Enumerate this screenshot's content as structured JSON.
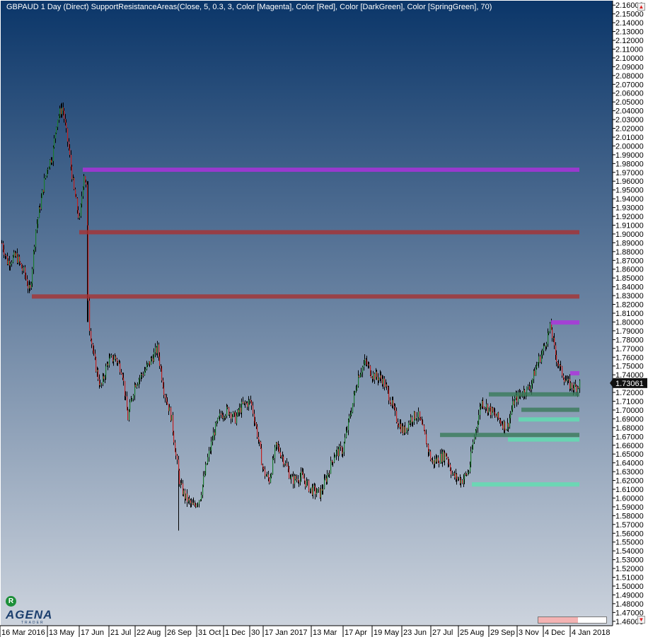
{
  "header": {
    "title": "GBPAUD 1 Day (Direct)    SupportResistanceAreas(Close, 5, 0.3, 3, Color [Magenta], Color [Red], Color [DarkGreen], Color [SpringGreen], 70)"
  },
  "logo": {
    "mark": "R",
    "name": "AGENA",
    "sub": "TRADER"
  },
  "price_badge": "1.73061",
  "colors": {
    "bg_top": "#0b3669",
    "bg_bottom": "#ccd3dd",
    "candle_up": "#1a7a2e",
    "candle_down": "#c02020",
    "wick": "#000000",
    "magenta": "#b030e0",
    "red": "#a83232",
    "darkgreen": "#3a7a5a",
    "springgreen": "#5fe0b0"
  },
  "chart_data": {
    "type": "candlestick",
    "title": "",
    "xlabel": "",
    "ylabel": "",
    "ylim": [
      1.455,
      2.165
    ],
    "y_ticks": [
      "2.16000",
      "2.15000",
      "2.14000",
      "2.13000",
      "2.12000",
      "2.11000",
      "2.10000",
      "2.09000",
      "2.08000",
      "2.07000",
      "2.06000",
      "2.05000",
      "2.04000",
      "2.03000",
      "2.02000",
      "2.01000",
      "2.00000",
      "1.99000",
      "1.98000",
      "1.97000",
      "1.96000",
      "1.95000",
      "1.94000",
      "1.93000",
      "1.92000",
      "1.91000",
      "1.90000",
      "1.89000",
      "1.88000",
      "1.87000",
      "1.86000",
      "1.85000",
      "1.84000",
      "1.83000",
      "1.82000",
      "1.81000",
      "1.80000",
      "1.79000",
      "1.78000",
      "1.77000",
      "1.76000",
      "1.75000",
      "1.74000",
      "1.73000",
      "1.72000",
      "1.71000",
      "1.70000",
      "1.69000",
      "1.68000",
      "1.67000",
      "1.66000",
      "1.65000",
      "1.64000",
      "1.63000",
      "1.62000",
      "1.61000",
      "1.60000",
      "1.59000",
      "1.58000",
      "1.57000",
      "1.56000",
      "1.55000",
      "1.54000",
      "1.53000",
      "1.52000",
      "1.51000",
      "1.50000",
      "1.49000",
      "1.48000",
      "1.47000",
      "1.46000"
    ],
    "x_labels": [
      "16 Mar 2016",
      "13 May",
      "17 Jun",
      "21 Jul",
      "22 Aug",
      "26 Sep",
      "31 Oct",
      "1 Dec",
      "30",
      "17 Jan 2017",
      "13 Mar",
      "17 Apr",
      "19 May",
      "23 Jun",
      "27 Jul",
      "25 Aug",
      "29 Sep",
      "3 Nov",
      "4 Dec",
      "4 Jan 2018"
    ],
    "last_close": 1.73061,
    "path_anchors": [
      [
        0,
        1.895
      ],
      [
        10,
        1.868
      ],
      [
        22,
        1.875
      ],
      [
        34,
        1.855
      ],
      [
        42,
        1.833
      ],
      [
        50,
        1.905
      ],
      [
        58,
        1.94
      ],
      [
        66,
        1.975
      ],
      [
        74,
        1.99
      ],
      [
        80,
        2.03
      ],
      [
        88,
        2.045
      ],
      [
        96,
        2.0
      ],
      [
        104,
        1.95
      ],
      [
        112,
        1.915
      ],
      [
        118,
        1.97
      ],
      [
        122,
        1.95
      ],
      [
        125,
        1.8
      ],
      [
        132,
        1.76
      ],
      [
        142,
        1.725
      ],
      [
        152,
        1.755
      ],
      [
        162,
        1.76
      ],
      [
        172,
        1.745
      ],
      [
        180,
        1.69
      ],
      [
        190,
        1.73
      ],
      [
        200,
        1.74
      ],
      [
        212,
        1.755
      ],
      [
        222,
        1.77
      ],
      [
        232,
        1.72
      ],
      [
        242,
        1.69
      ],
      [
        248,
        1.65
      ],
      [
        254,
        1.615
      ],
      [
        262,
        1.6
      ],
      [
        272,
        1.59
      ],
      [
        282,
        1.6
      ],
      [
        292,
        1.64
      ],
      [
        302,
        1.675
      ],
      [
        312,
        1.695
      ],
      [
        322,
        1.7
      ],
      [
        332,
        1.69
      ],
      [
        342,
        1.705
      ],
      [
        354,
        1.71
      ],
      [
        364,
        1.67
      ],
      [
        372,
        1.63
      ],
      [
        380,
        1.62
      ],
      [
        390,
        1.66
      ],
      [
        400,
        1.645
      ],
      [
        412,
        1.62
      ],
      [
        426,
        1.625
      ],
      [
        438,
        1.61
      ],
      [
        452,
        1.605
      ],
      [
        462,
        1.625
      ],
      [
        472,
        1.65
      ],
      [
        484,
        1.655
      ],
      [
        496,
        1.7
      ],
      [
        506,
        1.74
      ],
      [
        516,
        1.755
      ],
      [
        526,
        1.74
      ],
      [
        540,
        1.735
      ],
      [
        550,
        1.715
      ],
      [
        560,
        1.69
      ],
      [
        570,
        1.675
      ],
      [
        580,
        1.69
      ],
      [
        590,
        1.695
      ],
      [
        600,
        1.67
      ],
      [
        610,
        1.64
      ],
      [
        620,
        1.645
      ],
      [
        630,
        1.65
      ],
      [
        640,
        1.625
      ],
      [
        652,
        1.62
      ],
      [
        662,
        1.63
      ],
      [
        670,
        1.67
      ],
      [
        680,
        1.71
      ],
      [
        692,
        1.7
      ],
      [
        704,
        1.69
      ],
      [
        716,
        1.68
      ],
      [
        726,
        1.71
      ],
      [
        738,
        1.72
      ],
      [
        748,
        1.725
      ],
      [
        758,
        1.75
      ],
      [
        768,
        1.77
      ],
      [
        778,
        1.795
      ],
      [
        784,
        1.765
      ],
      [
        792,
        1.745
      ],
      [
        802,
        1.73
      ],
      [
        812,
        1.725
      ],
      [
        820,
        1.731
      ]
    ],
    "spikes": [
      {
        "x": 252,
        "low": 1.563
      },
      {
        "x": 88,
        "high": 2.052
      },
      {
        "x": 777,
        "high": 1.8
      }
    ],
    "levels": [
      {
        "kind": "magenta",
        "price": 1.973,
        "x_start": 117,
        "x_end": 819
      },
      {
        "kind": "red",
        "price": 1.902,
        "x_start": 112,
        "x_end": 819
      },
      {
        "kind": "red",
        "price": 1.829,
        "x_start": 45,
        "x_end": 819
      },
      {
        "kind": "magenta",
        "price": 1.7995,
        "x_start": 779,
        "x_end": 819
      },
      {
        "kind": "magenta",
        "price": 1.7418,
        "x_start": 806,
        "x_end": 819
      },
      {
        "kind": "darkgreen",
        "price": 1.7178,
        "x_start": 691,
        "x_end": 819
      },
      {
        "kind": "darkgreen",
        "price": 1.7003,
        "x_start": 737,
        "x_end": 819
      },
      {
        "kind": "springgreen",
        "price": 1.6893,
        "x_start": 733,
        "x_end": 819
      },
      {
        "kind": "darkgreen",
        "price": 1.6717,
        "x_start": 622,
        "x_end": 819
      },
      {
        "kind": "springgreen",
        "price": 1.6665,
        "x_start": 718,
        "x_end": 819
      },
      {
        "kind": "springgreen",
        "price": 1.6155,
        "x_start": 667,
        "x_end": 819
      }
    ]
  }
}
